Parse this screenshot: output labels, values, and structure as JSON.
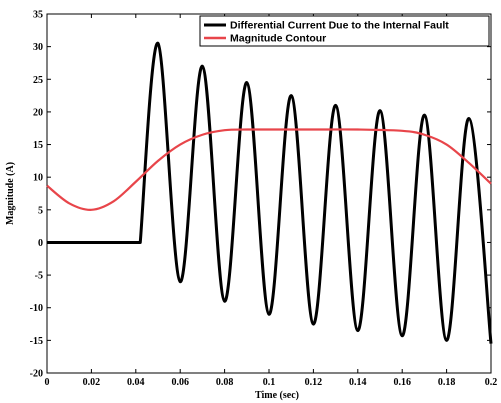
{
  "chart_data": {
    "type": "line",
    "title": "",
    "xlabel": "Time (sec)",
    "ylabel": "Magnitude (A)",
    "xlim": [
      0,
      0.2
    ],
    "ylim": [
      -20,
      35
    ],
    "xticks": [
      "0",
      "0.02",
      "0.04",
      "0.06",
      "0.08",
      "0.1",
      "0.12",
      "0.14",
      "0.16",
      "0.18",
      "0.2"
    ],
    "yticks": [
      "-20",
      "-15",
      "-10",
      "-5",
      "0",
      "5",
      "10",
      "15",
      "20",
      "25",
      "30",
      "35"
    ],
    "grid": false,
    "legend_position": "top-right",
    "series": [
      {
        "name": "Differential Current Due to the Internal Fault",
        "color": "#000000",
        "x": [
          0,
          0.042,
          0.05,
          0.06,
          0.07,
          0.08,
          0.09,
          0.1,
          0.11,
          0.12,
          0.13,
          0.14,
          0.15,
          0.16,
          0.17,
          0.18,
          0.19,
          0.2
        ],
        "y": [
          0,
          0,
          30.5,
          -6,
          27,
          -9,
          24.5,
          -11,
          22.5,
          -12.5,
          21,
          -13.5,
          20.2,
          -14.3,
          19.5,
          -15,
          19,
          -15.5
        ]
      },
      {
        "name": "Magnitude Contour",
        "color": "#e8454a",
        "x": [
          0,
          0.01,
          0.02,
          0.03,
          0.04,
          0.05,
          0.06,
          0.07,
          0.08,
          0.09,
          0.1,
          0.12,
          0.14,
          0.16,
          0.17,
          0.18,
          0.19,
          0.2
        ],
        "y": [
          8.7,
          6,
          5,
          6.3,
          9.3,
          12.5,
          15,
          16.5,
          17.2,
          17.3,
          17.3,
          17.3,
          17.3,
          17.1,
          16.5,
          15,
          12.2,
          9
        ]
      }
    ]
  }
}
